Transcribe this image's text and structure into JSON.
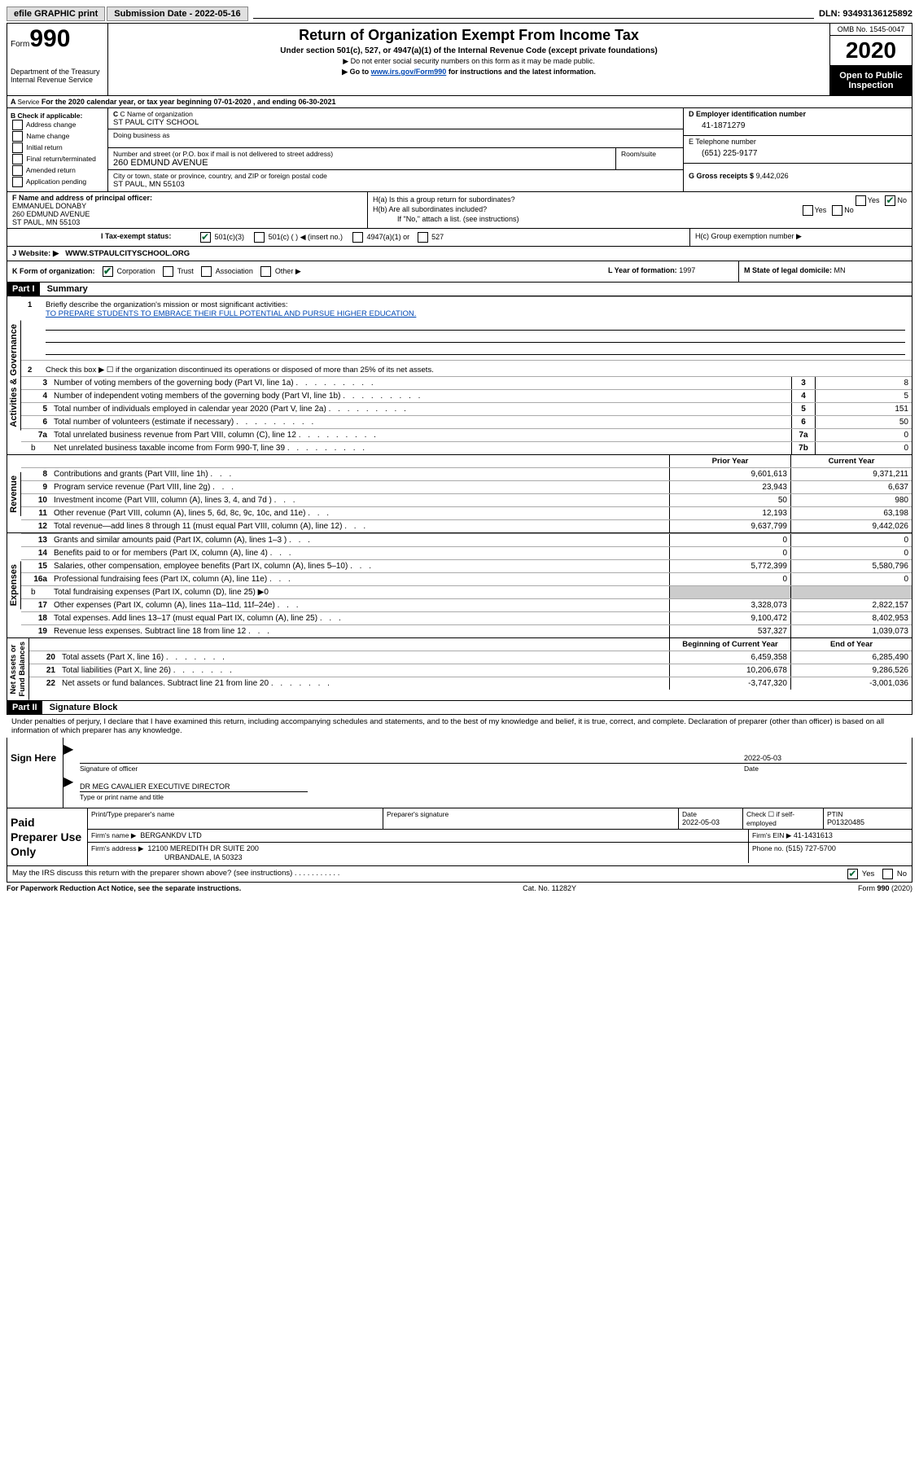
{
  "topbar": {
    "efile": "efile GRAPHIC print",
    "subdate_lbl": "Submission Date",
    "subdate": "2022-05-16",
    "dln_lbl": "DLN:",
    "dln": "93493136125892"
  },
  "header": {
    "form_lbl": "Form",
    "form_num": "990",
    "dept": "Department of the Treasury\nInternal Revenue Service",
    "title": "Return of Organization Exempt From Income Tax",
    "subtitle": "Under section 501(c), 527, or 4947(a)(1) of the Internal Revenue Code (except private foundations)",
    "instr1": "Do not enter social security numbers on this form as it may be made public.",
    "instr2_pre": "Go to ",
    "instr2_link": "www.irs.gov/Form990",
    "instr2_post": " for instructions and the latest information.",
    "omb": "OMB No. 1545-0047",
    "year": "2020",
    "open": "Open to Public Inspection"
  },
  "section_a": {
    "line": "For the 2020 calendar year, or tax year beginning 07-01-2020   , and ending 06-30-2021"
  },
  "box_b": {
    "header": "B Check if applicable:",
    "items": [
      "Address change",
      "Name change",
      "Initial return",
      "Final return/terminated",
      "Amended return",
      "Application pending"
    ]
  },
  "box_c": {
    "name_lbl": "C Name of organization",
    "name": "ST PAUL CITY SCHOOL",
    "dba_lbl": "Doing business as",
    "addr_lbl": "Number and street (or P.O. box if mail is not delivered to street address)",
    "room_lbl": "Room/suite",
    "addr": "260 EDMUND AVENUE",
    "city_lbl": "City or town, state or province, country, and ZIP or foreign postal code",
    "city": "ST PAUL, MN  55103"
  },
  "box_d": {
    "lbl": "D Employer identification number",
    "val": "41-1871279"
  },
  "box_e": {
    "lbl": "E Telephone number",
    "val": "(651) 225-9177"
  },
  "box_g": {
    "lbl": "G Gross receipts $",
    "val": "9,442,026"
  },
  "box_f": {
    "lbl": "F  Name and address of principal officer:",
    "name": "EMMANUEL DONABY",
    "addr1": "260 EDMUND AVENUE",
    "addr2": "ST PAUL, MN  55103"
  },
  "box_h": {
    "ha": "H(a)  Is this a group return for subordinates?",
    "hb": "H(b)  Are all subordinates included?",
    "hnote": "If \"No,\" attach a list. (see instructions)",
    "hc": "H(c)  Group exemption number ▶",
    "yes": "Yes",
    "no": "No"
  },
  "row_i": {
    "lbl": "I  Tax-exempt status:",
    "o1": "501(c)(3)",
    "o2": "501(c) (   ) ◀ (insert no.)",
    "o3": "4947(a)(1) or",
    "o4": "527"
  },
  "row_j": {
    "lbl": "J   Website: ▶",
    "val": "WWW.STPAULCITYSCHOOL.ORG"
  },
  "row_k": {
    "lbl": "K Form of organization:",
    "o1": "Corporation",
    "o2": "Trust",
    "o3": "Association",
    "o4": "Other ▶",
    "l_lbl": "L Year of formation:",
    "l_val": "1997",
    "m_lbl": "M State of legal domicile:",
    "m_val": "MN"
  },
  "part1": {
    "badge": "Part I",
    "title": "Summary"
  },
  "briefly": {
    "n1": "1",
    "q1": "Briefly describe the organization's mission or most significant activities:",
    "mission": "TO PREPARE STUDENTS TO EMBRACE THEIR FULL POTENTIAL AND PURSUE HIGHER EDUCATION.",
    "n2": "2",
    "q2": "Check this box ▶ ☐  if the organization discontinued its operations or disposed of more than 25% of its net assets."
  },
  "gov_lines": [
    {
      "n": "3",
      "d": "Number of voting members of the governing body (Part VI, line 1a)",
      "b": "3",
      "v": "8"
    },
    {
      "n": "4",
      "d": "Number of independent voting members of the governing body (Part VI, line 1b)",
      "b": "4",
      "v": "5"
    },
    {
      "n": "5",
      "d": "Total number of individuals employed in calendar year 2020 (Part V, line 2a)",
      "b": "5",
      "v": "151"
    },
    {
      "n": "6",
      "d": "Total number of volunteers (estimate if necessary)",
      "b": "6",
      "v": "50"
    },
    {
      "n": "7a",
      "d": "Total unrelated business revenue from Part VIII, column (C), line 12",
      "b": "7a",
      "v": "0"
    },
    {
      "n": "b",
      "d": "Net unrelated business taxable income from Form 990-T, line 39",
      "b": "7b",
      "v": "0",
      "sub": true
    }
  ],
  "rev_hdr": {
    "py": "Prior Year",
    "cy": "Current Year"
  },
  "rev_lines": [
    {
      "n": "8",
      "d": "Contributions and grants (Part VIII, line 1h)",
      "py": "9,601,613",
      "cy": "9,371,211"
    },
    {
      "n": "9",
      "d": "Program service revenue (Part VIII, line 2g)",
      "py": "23,943",
      "cy": "6,637"
    },
    {
      "n": "10",
      "d": "Investment income (Part VIII, column (A), lines 3, 4, and 7d )",
      "py": "50",
      "cy": "980"
    },
    {
      "n": "11",
      "d": "Other revenue (Part VIII, column (A), lines 5, 6d, 8c, 9c, 10c, and 11e)",
      "py": "12,193",
      "cy": "63,198"
    },
    {
      "n": "12",
      "d": "Total revenue—add lines 8 through 11 (must equal Part VIII, column (A), line 12)",
      "py": "9,637,799",
      "cy": "9,442,026"
    }
  ],
  "exp_lines": [
    {
      "n": "13",
      "d": "Grants and similar amounts paid (Part IX, column (A), lines 1–3 )",
      "py": "0",
      "cy": "0"
    },
    {
      "n": "14",
      "d": "Benefits paid to or for members (Part IX, column (A), line 4)",
      "py": "0",
      "cy": "0"
    },
    {
      "n": "15",
      "d": "Salaries, other compensation, employee benefits (Part IX, column (A), lines 5–10)",
      "py": "5,772,399",
      "cy": "5,580,796"
    },
    {
      "n": "16a",
      "d": "Professional fundraising fees (Part IX, column (A), line 11e)",
      "py": "0",
      "cy": "0"
    },
    {
      "n": "b",
      "d": "Total fundraising expenses (Part IX, column (D), line 25) ▶0",
      "py": "",
      "cy": "",
      "sub": true,
      "grey": true
    },
    {
      "n": "17",
      "d": "Other expenses (Part IX, column (A), lines 11a–11d, 11f–24e)",
      "py": "3,328,073",
      "cy": "2,822,157"
    },
    {
      "n": "18",
      "d": "Total expenses. Add lines 13–17 (must equal Part IX, column (A), line 25)",
      "py": "9,100,472",
      "cy": "8,402,953"
    },
    {
      "n": "19",
      "d": "Revenue less expenses. Subtract line 18 from line 12",
      "py": "537,327",
      "cy": "1,039,073"
    }
  ],
  "na_hdr": {
    "py": "Beginning of Current Year",
    "cy": "End of Year"
  },
  "na_lines": [
    {
      "n": "20",
      "d": "Total assets (Part X, line 16)",
      "py": "6,459,358",
      "cy": "6,285,490"
    },
    {
      "n": "21",
      "d": "Total liabilities (Part X, line 26)",
      "py": "10,206,678",
      "cy": "9,286,526"
    },
    {
      "n": "22",
      "d": "Net assets or fund balances. Subtract line 21 from line 20",
      "py": "-3,747,320",
      "cy": "-3,001,036"
    }
  ],
  "vtabs": {
    "gov": "Activities & Governance",
    "rev": "Revenue",
    "exp": "Expenses",
    "na": "Net Assets or\nFund Balances"
  },
  "part2": {
    "badge": "Part II",
    "title": "Signature Block",
    "decl": "Under penalties of perjury, I declare that I have examined this return, including accompanying schedules and statements, and to the best of my knowledge and belief, it is true, correct, and complete. Declaration of preparer (other than officer) is based on all information of which preparer has any knowledge."
  },
  "sign": {
    "lbl": "Sign Here",
    "sig_lbl": "Signature of officer",
    "date_lbl": "Date",
    "date": "2022-05-03",
    "name": "DR MEG CAVALIER  EXECUTIVE DIRECTOR",
    "name_lbl": "Type or print name and title"
  },
  "prep": {
    "lbl": "Paid Preparer Use Only",
    "r1": {
      "c1": "Print/Type preparer's name",
      "c2": "Preparer's signature",
      "c3_lbl": "Date",
      "c3": "2022-05-03",
      "c4_lbl": "Check ☐ if self-employed",
      "c5_lbl": "PTIN",
      "c5": "P01320485"
    },
    "r2": {
      "lbl": "Firm's name      ▶",
      "val": "BERGANKDV LTD",
      "ein_lbl": "Firm's EIN ▶",
      "ein": "41-1431613"
    },
    "r3": {
      "lbl": "Firm's address ▶",
      "val1": "12100 MEREDITH DR SUITE 200",
      "val2": "URBANDALE, IA  50323",
      "ph_lbl": "Phone no.",
      "ph": "(515) 727-5700"
    }
  },
  "may": {
    "q": "May the IRS discuss this return with the preparer shown above? (see instructions)",
    "yes": "Yes",
    "no": "No"
  },
  "footer": {
    "left": "For Paperwork Reduction Act Notice, see the separate instructions.",
    "mid": "Cat. No. 11282Y",
    "right": "Form 990 (2020)"
  }
}
